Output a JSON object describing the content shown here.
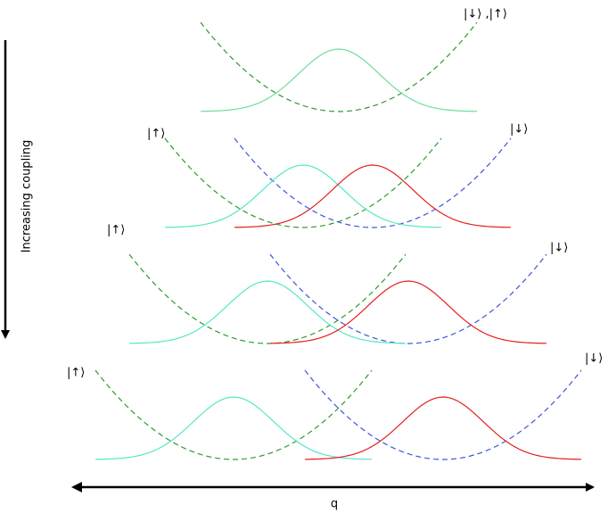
{
  "rows": [
    {
      "right": "|↓⟩ ,|↑⟩"
    },
    {
      "left": "|↑⟩",
      "right": "|↓⟩"
    },
    {
      "left": "|↑⟩",
      "right": "|↓⟩"
    },
    {
      "left": "|↑⟩",
      "right": "|↓⟩"
    }
  ],
  "y_axis_label": "Increasing coupling",
  "x_axis_label": "q"
}
